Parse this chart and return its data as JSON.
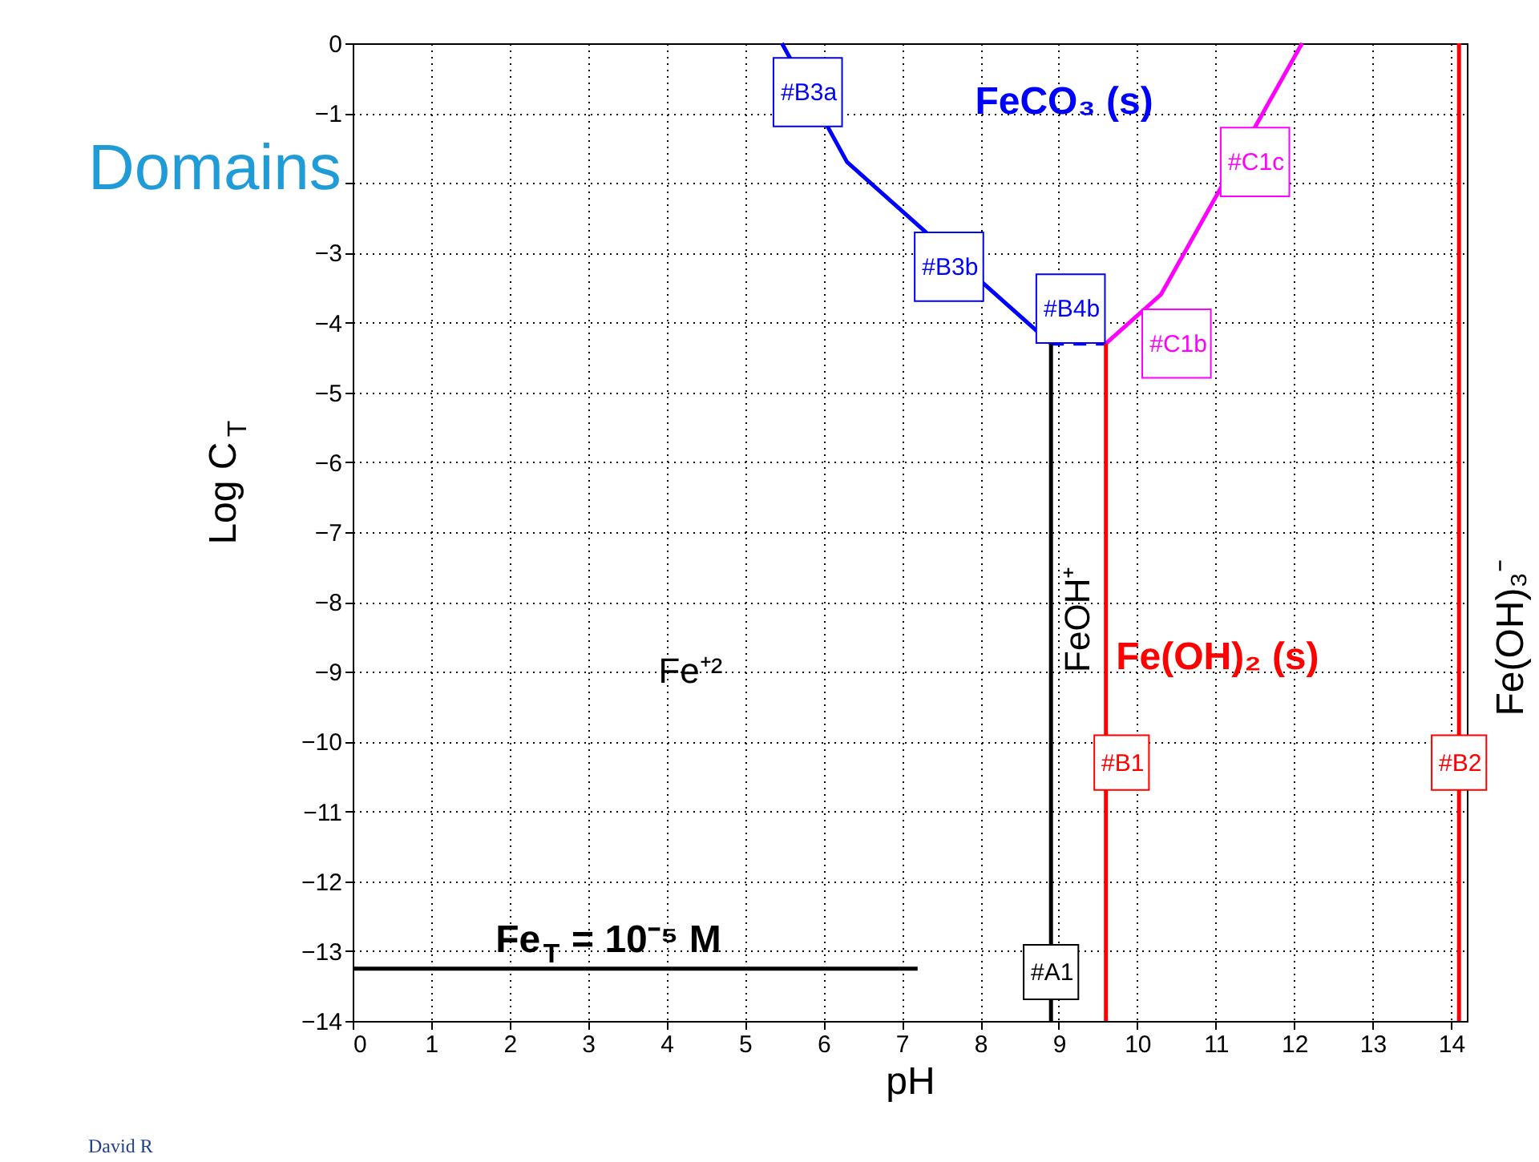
{
  "chart_data": {
    "type": "line",
    "title": "Domains",
    "xlabel": "pH",
    "ylabel": "Log C$_{T}$",
    "y2label": "Fe(OH)₃⁻",
    "xlim": [
      0,
      14.2
    ],
    "xticks": [
      0,
      1,
      2,
      3,
      4,
      5,
      6,
      7,
      8,
      9,
      10,
      11,
      12,
      13,
      14
    ],
    "ylim": [
      -14,
      0
    ],
    "yticks": [
      0,
      -1,
      {
        "value": -2,
        "label": null
      },
      -3,
      -4,
      -5,
      -6,
      -7,
      -8,
      -9,
      -10,
      -11,
      -12,
      -13,
      -14
    ],
    "grid": true,
    "marker": "none",
    "line_style": "solid",
    "series": [
      {
        "color": "#0000ff",
        "x": [
          5.47,
          6.3,
          8.9
        ],
        "values": [
          0,
          -1.7,
          -4.3
        ]
      },
      {
        "color": "#0000ff",
        "x": [
          8.9,
          9.6
        ],
        "values": [
          -4.3,
          -4.3
        ],
        "line_style": "dashed"
      },
      {
        "color": "#ff00ff",
        "x": [
          9.6,
          10.3,
          12.1
        ],
        "values": [
          -4.3,
          -3.6,
          0
        ]
      },
      {
        "color": "#000000",
        "x": [
          8.9,
          8.9
        ],
        "values": [
          -4.3,
          -14
        ]
      },
      {
        "color": "#ff0000",
        "x": [
          9.6,
          9.6
        ],
        "values": [
          -4.3,
          -14
        ]
      },
      {
        "color": "#ff0000",
        "x": [
          14.1,
          14.1
        ],
        "values": [
          0,
          -14
        ]
      },
      {
        "color": "#000000",
        "x": [
          0,
          7.2
        ],
        "values": [
          -13.25,
          -13.25
        ]
      }
    ],
    "annotations": [
      "#B3a",
      "FeCO₃ (s)",
      "#C1c",
      "#B3b",
      "#B4b",
      "#C1b",
      "Fe⁺²",
      "FeOH⁺",
      "Fe(OH)₂ (s)",
      "#B1",
      "#B2",
      "#A1",
      "Fe$_{T}$ = 10⁻⁵ M",
      "David R"
    ]
  }
}
